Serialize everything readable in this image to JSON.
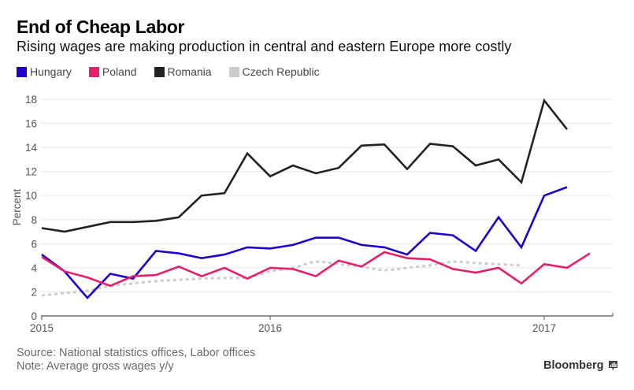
{
  "header": {
    "title": "End of Cheap Labor",
    "subtitle": "Rising wages are making production in central and eastern Europe more costly"
  },
  "legend": [
    {
      "label": "Hungary",
      "color": "#2200cc"
    },
    {
      "label": "Poland",
      "color": "#e5206a"
    },
    {
      "label": "Romania",
      "color": "#222222"
    },
    {
      "label": "Czech Republic",
      "color": "#cccccc"
    }
  ],
  "footer": {
    "source": "Source: National statistics offices, Labor offices",
    "note": "Note: Average gross wages y/y"
  },
  "brand": {
    "name": "Bloomberg",
    "icon": "bloomberg-chart-icon"
  },
  "chart_data": {
    "type": "line",
    "title": "End of Cheap Labor",
    "subtitle": "Rising wages are making production in central and eastern Europe more costly",
    "xlabel": "",
    "ylabel": "Percent",
    "x_unit": "months relative to Jan 2016",
    "x_range": [
      -10,
      15
    ],
    "x_ticks": [
      {
        "value": -10,
        "label": "2015"
      },
      {
        "value": 0,
        "label": "2016"
      },
      {
        "value": 12,
        "label": "2017"
      }
    ],
    "ylim": [
      0,
      18
    ],
    "y_ticks": [
      0,
      2,
      4,
      6,
      8,
      10,
      12,
      14,
      16,
      18
    ],
    "grid": true,
    "legend_position": "top-left",
    "series": [
      {
        "name": "Hungary",
        "color": "#2200cc",
        "style": "solid",
        "x_start": -10,
        "values": [
          5.1,
          3.7,
          1.5,
          3.5,
          3.1,
          5.4,
          5.2,
          4.8,
          5.1,
          5.7,
          5.6,
          5.9,
          6.5,
          6.5,
          5.9,
          5.7,
          5.1,
          6.9,
          6.7,
          5.4,
          8.2,
          5.7,
          10.0,
          10.7
        ]
      },
      {
        "name": "Poland",
        "color": "#e5206a",
        "style": "solid",
        "x_start": -10,
        "values": [
          4.9,
          3.7,
          3.2,
          2.5,
          3.3,
          3.4,
          4.1,
          3.3,
          4.0,
          3.1,
          4.0,
          3.9,
          3.3,
          4.6,
          4.1,
          5.3,
          4.8,
          4.7,
          3.9,
          3.6,
          4.0,
          2.7,
          4.3,
          4.0,
          5.2
        ]
      },
      {
        "name": "Romania",
        "color": "#222222",
        "style": "solid",
        "x_start": -10,
        "values": [
          7.3,
          7.0,
          7.4,
          7.8,
          7.8,
          7.9,
          8.2,
          10.0,
          10.2,
          13.5,
          11.6,
          12.5,
          11.85,
          12.3,
          14.15,
          14.25,
          12.2,
          14.3,
          14.1,
          12.5,
          13.0,
          11.1,
          17.9,
          15.5
        ]
      },
      {
        "name": "Czech Republic",
        "color": "#cccccc",
        "style": "dotted",
        "x_start": -10,
        "values": [
          1.7,
          1.9,
          2.1,
          2.5,
          2.7,
          2.9,
          3.0,
          3.1,
          3.15,
          3.2,
          3.7,
          4.0,
          4.5,
          4.3,
          4.1,
          3.8,
          4.0,
          4.2,
          4.5,
          4.4,
          4.3,
          4.2
        ]
      }
    ]
  }
}
